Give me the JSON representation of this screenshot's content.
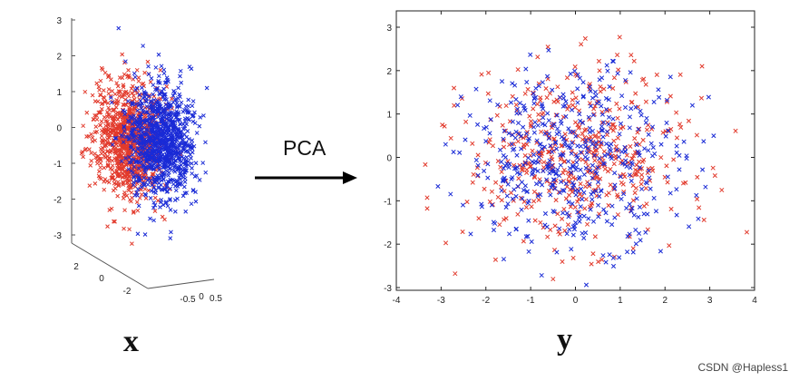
{
  "chart_data": [
    {
      "type": "scatter",
      "projection": "3d",
      "marker": "x",
      "series": [
        {
          "color": "#e23a2c",
          "count": 1000,
          "center": [
            -0.2,
            0,
            -0.4
          ],
          "spread": [
            0.2,
            1.2,
            0.8
          ]
        },
        {
          "color": "#1a2bd6",
          "count": 1000,
          "center": [
            0.2,
            0,
            -0.4
          ],
          "spread": [
            0.2,
            1.2,
            0.8
          ]
        }
      ],
      "z_ticks": [
        "3",
        "2",
        "1",
        "0",
        "-1",
        "-2",
        "-3"
      ],
      "y_ticks": [
        "2",
        "0",
        "-2"
      ],
      "x_ticks": [
        "-0.5",
        "0",
        "0.5"
      ],
      "label": "x"
    },
    {
      "type": "scatter",
      "marker": "x",
      "xlim": [
        -4,
        4
      ],
      "ylim": [
        -3,
        3
      ],
      "x_ticks": [
        "-4",
        "-3",
        "-2",
        "-1",
        "0",
        "1",
        "2",
        "3",
        "4"
      ],
      "y_ticks": [
        "3",
        "2",
        "1",
        "0",
        "-1",
        "-2",
        "-3"
      ],
      "series": [
        {
          "color": "#e23a2c",
          "count": 500,
          "mean": [
            0,
            0
          ],
          "std": [
            1.2,
            1.0
          ]
        },
        {
          "color": "#1a2bd6",
          "count": 500,
          "mean": [
            0,
            0
          ],
          "std": [
            1.2,
            1.0
          ]
        }
      ],
      "label": "y"
    }
  ],
  "arrow_label": "PCA",
  "watermark": "CSDN @Hapless1"
}
